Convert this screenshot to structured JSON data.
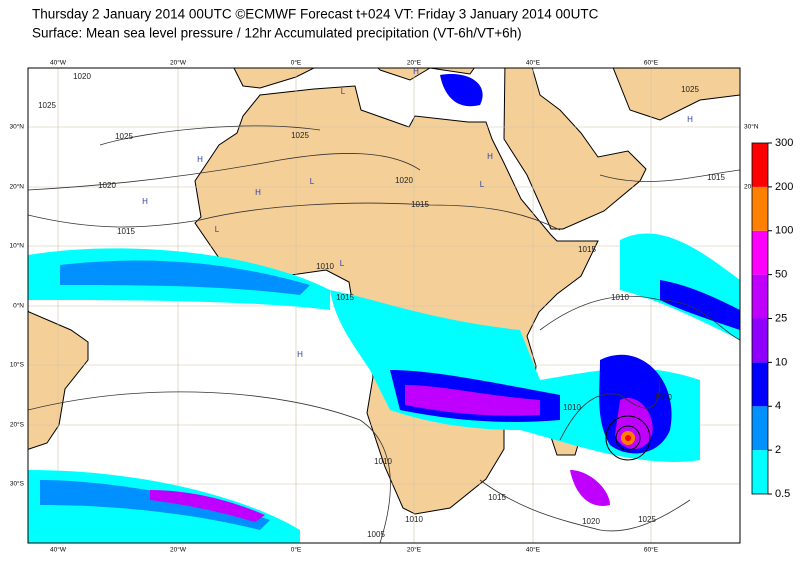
{
  "header": {
    "line1": "Thursday 2 January 2014 00UTC ©ECMWF Forecast t+024 VT: Friday 3 January 2014 00UTC",
    "line2": "Surface: Mean sea level pressure / 12hr Accumulated precipitation (VT-6h/VT+6h)"
  },
  "map": {
    "lon_labels": [
      "40°W",
      "20°W",
      "0°E",
      "20°E",
      "40°E",
      "60°E"
    ],
    "lat_labels": [
      "30°N",
      "20°N",
      "10°N",
      "0°N",
      "10°S",
      "20°S",
      "30°S"
    ],
    "isobar_labels": [
      "1025",
      "1020",
      "1025",
      "1020",
      "1015",
      "1025",
      "1020",
      "1015",
      "1010",
      "1015",
      "1015",
      "1010",
      "1015",
      "1025",
      "1010",
      "1010",
      "1010",
      "1005",
      "1010",
      "1015",
      "1020",
      "1025"
    ],
    "pressure_centers": [
      "H",
      "L",
      "H",
      "L",
      "H",
      "L",
      "H",
      "L",
      "H",
      "H",
      "L",
      "H"
    ]
  },
  "colorbar": {
    "levels": [
      0.5,
      2,
      4,
      10,
      25,
      50,
      100,
      200,
      300
    ],
    "colors": [
      "#00ffff",
      "#0090ff",
      "#0000ff",
      "#9000ff",
      "#c000ff",
      "#ff00ff",
      "#ff8000",
      "#ff0000"
    ]
  }
}
